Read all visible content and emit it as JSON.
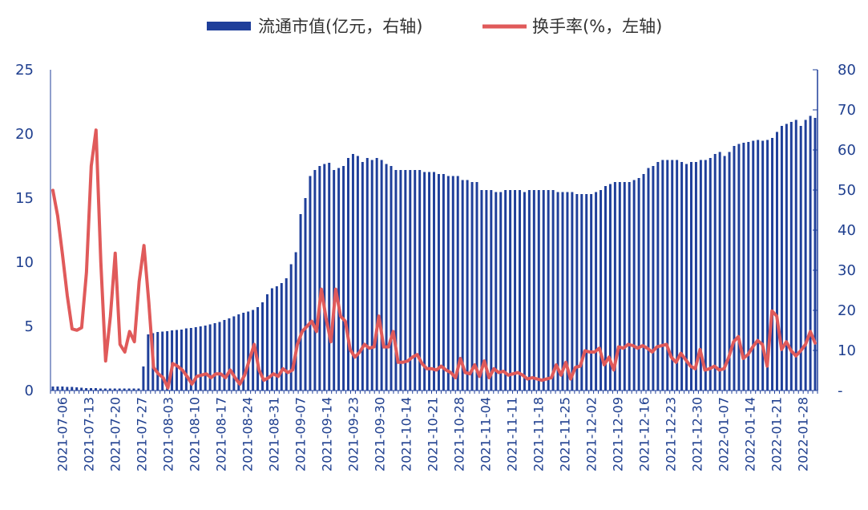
{
  "colors": {
    "bar": "#1f3f9a",
    "line": "#e05a5a",
    "axis": "#1f3f9a"
  },
  "legend": {
    "bar_label": "流通市值(亿元，右轴)",
    "line_label": "换手率(%，左轴)"
  },
  "chart_data": {
    "type": "bar+line",
    "x_labels": [
      "2021-07-06",
      "2021-07-13",
      "2021-07-20",
      "2021-07-27",
      "2021-08-03",
      "2021-08-10",
      "2021-08-17",
      "2021-08-24",
      "2021-08-31",
      "2021-09-07",
      "2021-09-14",
      "2021-09-23",
      "2021-09-30",
      "2021-10-14",
      "2021-10-21",
      "2021-10-28",
      "2021-11-04",
      "2021-11-11",
      "2021-11-18",
      "2021-11-25",
      "2021-12-02",
      "2021-12-09",
      "2021-12-16",
      "2021-12-23",
      "2021-12-30",
      "2022-01-07",
      "2022-01-14",
      "2022-01-21",
      "2022-01-28"
    ],
    "left_axis": {
      "ylim": [
        0,
        25
      ],
      "ticks": [
        "0",
        "5",
        "10",
        "15",
        "20",
        "25"
      ]
    },
    "right_axis": {
      "ylim": [
        0,
        80
      ],
      "ticks": [
        "-",
        "10",
        "20",
        "30",
        "40",
        "50",
        "60",
        "70",
        "80"
      ]
    },
    "series": [
      {
        "name": "流通市值(亿元，右轴)",
        "type": "bar",
        "axis": "right",
        "values": [
          1.0,
          1.0,
          1.0,
          0.9,
          0.9,
          0.8,
          0.7,
          0.6,
          0.6,
          0.6,
          0.5,
          0.5,
          0.5,
          0.5,
          0.5,
          0.5,
          0.5,
          0.5,
          0.5,
          6.0,
          14.0,
          14.3,
          14.6,
          14.7,
          14.8,
          15.0,
          15.1,
          15.2,
          15.5,
          15.6,
          15.8,
          16.0,
          16.2,
          16.5,
          16.8,
          17.1,
          17.6,
          18.0,
          18.5,
          19.0,
          19.4,
          19.7,
          20.1,
          20.8,
          22.0,
          24.0,
          25.5,
          26.0,
          26.8,
          28.0,
          31.5,
          34.5,
          44.0,
          48.0,
          53.5,
          55.0,
          56.0,
          56.5,
          56.8,
          55.0,
          55.5,
          56.0,
          58.0,
          59.0,
          58.5,
          57.0,
          58.0,
          57.5,
          58.0,
          57.5,
          56.5,
          56.0,
          55.0,
          55.0,
          55.0,
          55.0,
          55.0,
          55.0,
          54.5,
          54.5,
          54.5,
          54.0,
          54.0,
          53.5,
          53.5,
          53.5,
          52.5,
          52.5,
          52.0,
          52.0,
          50.0,
          50.0,
          50.0,
          49.5,
          49.5,
          50.0,
          50.0,
          50.0,
          50.0,
          49.5,
          50.0,
          50.0,
          50.0,
          50.0,
          50.0,
          50.0,
          49.5,
          49.5,
          49.5,
          49.5,
          49.0,
          49.0,
          49.0,
          49.0,
          49.5,
          50.0,
          51.0,
          51.5,
          52.0,
          52.0,
          52.0,
          52.0,
          52.5,
          53.0,
          54.0,
          55.5,
          56.0,
          57.0,
          57.5,
          57.5,
          57.5,
          57.5,
          57.0,
          56.5,
          57.0,
          57.0,
          57.5,
          57.5,
          58.0,
          59.0,
          59.5,
          58.5,
          59.5,
          61.0,
          61.5,
          61.8,
          62.0,
          62.3,
          62.5,
          62.3,
          62.5,
          63.0,
          64.5,
          66.0,
          66.5,
          67.0,
          67.5,
          66.0,
          67.5,
          68.5,
          68.0
        ]
      },
      {
        "name": "换手率(%，左轴)",
        "type": "line",
        "axis": "left",
        "values": [
          15.6,
          13.6,
          10.6,
          7.4,
          4.8,
          4.7,
          4.9,
          9.2,
          17.5,
          20.3,
          10.0,
          2.3,
          5.8,
          10.7,
          3.6,
          3.0,
          4.6,
          3.8,
          8.5,
          11.3,
          6.9,
          1.8,
          1.3,
          1.0,
          0.2,
          2.1,
          1.9,
          1.6,
          1.1,
          0.5,
          1.1,
          1.2,
          1.3,
          1.0,
          1.3,
          1.3,
          1.0,
          1.6,
          1.0,
          0.5,
          1.2,
          2.4,
          3.6,
          1.6,
          0.8,
          1.0,
          1.3,
          1.1,
          1.7,
          1.4,
          1.6,
          3.6,
          4.6,
          5.0,
          5.4,
          4.6,
          7.9,
          5.6,
          3.8,
          7.9,
          5.8,
          5.4,
          3.2,
          2.6,
          3.0,
          3.6,
          3.3,
          3.4,
          5.8,
          3.4,
          3.4,
          4.6,
          2.2,
          2.2,
          2.3,
          2.6,
          2.8,
          2.1,
          1.7,
          1.7,
          1.6,
          1.9,
          1.6,
          1.4,
          1.0,
          2.5,
          1.4,
          1.3,
          2.0,
          1.1,
          2.3,
          1.0,
          1.7,
          1.4,
          1.5,
          1.2,
          1.3,
          1.4,
          1.2,
          0.9,
          1.0,
          0.9,
          0.8,
          0.9,
          1.0,
          2.0,
          1.2,
          2.2,
          0.9,
          1.8,
          1.9,
          3.1,
          3.0,
          3.0,
          3.3,
          2.0,
          2.6,
          1.6,
          3.4,
          3.3,
          3.6,
          3.5,
          3.3,
          3.5,
          3.3,
          3.0,
          3.4,
          3.5,
          3.6,
          2.6,
          2.2,
          2.9,
          2.4,
          1.9,
          1.7,
          3.2,
          1.6,
          1.7,
          1.9,
          1.6,
          1.7,
          2.6,
          3.8,
          4.2,
          2.5,
          2.8,
          3.4,
          3.9,
          3.6,
          1.9,
          6.2,
          5.8,
          3.2,
          3.8,
          3.1,
          2.7,
          3.1,
          3.6,
          4.6,
          3.7
        ]
      }
    ]
  }
}
